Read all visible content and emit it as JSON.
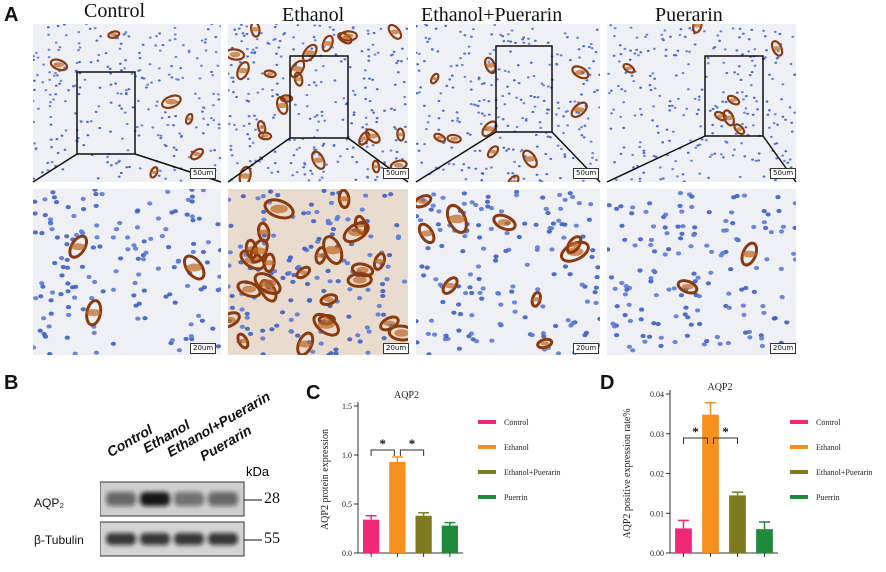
{
  "panel_a": {
    "letter": "A",
    "columns": [
      "Control",
      "Ethanol",
      "Ethanol+Puerarin",
      "Puerarin"
    ],
    "scale_top": "50um",
    "scale_bottom": "20um"
  },
  "panel_b": {
    "letter": "B",
    "lanes": [
      "Control",
      "Ethanol",
      "Ethanol+Puerarin",
      "Puerarin"
    ],
    "kda_label": "kDa",
    "rows": [
      {
        "label": "AQP₂",
        "mw": "28"
      },
      {
        "label": "β-Tubulin",
        "mw": "55"
      }
    ],
    "band_intensity": {
      "AQP2": [
        0.55,
        0.95,
        0.5,
        0.55
      ],
      "tubulin": [
        0.8,
        0.8,
        0.8,
        0.8
      ]
    }
  },
  "colors": {
    "Control": "#f0287a",
    "Ethanol": "#f7901e",
    "Ethanol+Puerarin": "#7f7a1e",
    "Puerrin": "#1e8a3a"
  },
  "chart_data": [
    {
      "panel": "C",
      "type": "bar",
      "title": "AQP2",
      "xlabel": "",
      "ylabel": "AQP2 protein expression",
      "categories": [
        "Control",
        "Ethanol",
        "Ethanol+Puerarin",
        "Puerrin"
      ],
      "values": [
        0.34,
        0.93,
        0.38,
        0.28
      ],
      "errors": [
        0.04,
        0.05,
        0.03,
        0.03
      ],
      "ylim": [
        0,
        1.5
      ],
      "yticks": [
        "0.0",
        "0.5",
        "1.0",
        "1.5"
      ],
      "significance": [
        "*",
        "*"
      ],
      "legend_position": "right",
      "legend": [
        "Control",
        "Ethanol",
        "Ethanol+Puerarin",
        "Puerrin"
      ]
    },
    {
      "panel": "D",
      "type": "bar",
      "title": "AQP2",
      "xlabel": "",
      "ylabel": "AQP2 positive expression rate%",
      "categories": [
        "Control",
        "Ethanol",
        "Ethanol+Puerarin",
        "Puerrin"
      ],
      "values": [
        0.0062,
        0.0348,
        0.0145,
        0.006
      ],
      "errors": [
        0.002,
        0.003,
        0.0008,
        0.0018
      ],
      "ylim": [
        0,
        0.04
      ],
      "yticks": [
        "0.00",
        "0.01",
        "0.02",
        "0.03",
        "0.04"
      ],
      "significance": [
        "*",
        "*"
      ],
      "legend_position": "right",
      "legend": [
        "Control",
        "Ethanol",
        "Ethanol+Puerarin",
        "Puerrin"
      ]
    }
  ]
}
